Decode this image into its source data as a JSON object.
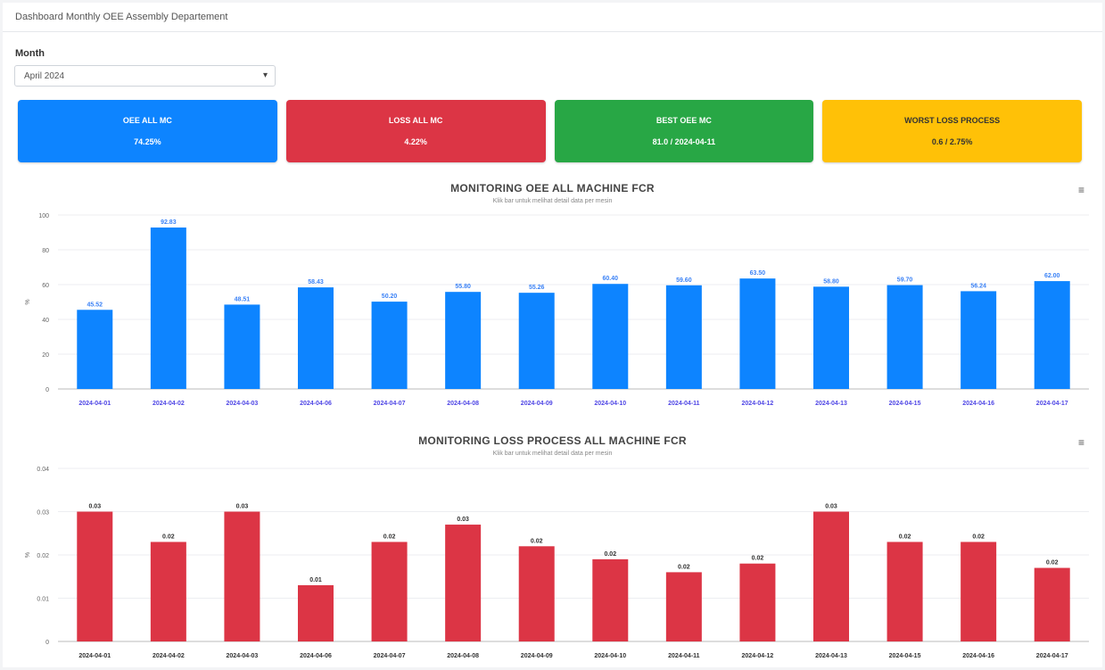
{
  "header": {
    "title": "Dashboard Monthly OEE Assembly Departement"
  },
  "filter": {
    "label": "Month",
    "value": "April 2024"
  },
  "cards": [
    {
      "title": "OEE ALL MC",
      "value": "74.25%",
      "color": "#0d84ff"
    },
    {
      "title": "LOSS ALL MC",
      "value": "4.22%",
      "color": "#dc3545"
    },
    {
      "title": "BEST OEE MC",
      "value": "81.0 / 2024-04-11",
      "color": "#28a745"
    },
    {
      "title": "WORST LOSS PROCESS",
      "value": "0.6 / 2.75%",
      "color": "#ffc107"
    }
  ],
  "chart_data": [
    {
      "type": "bar",
      "title": "MONITORING OEE ALL MACHINE FCR",
      "subtitle": "Klik bar untuk melihat detail data per mesin",
      "ylabel": "%",
      "ylim": [
        0,
        100
      ],
      "yticks": [
        0,
        20,
        40,
        60,
        80,
        100
      ],
      "categories": [
        "2024-04-01",
        "2024-04-02",
        "2024-04-03",
        "2024-04-06",
        "2024-04-07",
        "2024-04-08",
        "2024-04-09",
        "2024-04-10",
        "2024-04-11",
        "2024-04-12",
        "2024-04-13",
        "2024-04-15",
        "2024-04-16",
        "2024-04-17"
      ],
      "values": [
        45.5,
        92.8,
        48.5,
        58.4,
        50.2,
        55.8,
        55.3,
        60.4,
        59.6,
        63.5,
        58.8,
        59.7,
        56.2,
        62.0
      ],
      "labels": [
        "45.52",
        "92.83",
        "48.51",
        "58.43",
        "50.20",
        "55.80",
        "55.26",
        "60.40",
        "59.60",
        "63.50",
        "58.80",
        "59.70",
        "56.24",
        "62.00"
      ],
      "color": "#0d84ff",
      "label_color": "#3b82f6",
      "tick_color": "#4f46e5",
      "grid": true
    },
    {
      "type": "bar",
      "title": "MONITORING LOSS PROCESS ALL MACHINE FCR",
      "subtitle": "Klik bar untuk melihat detail data per mesin",
      "ylabel": "%",
      "ylim": [
        0,
        0.04
      ],
      "yticks": [
        0,
        0.01,
        0.02,
        0.03,
        0.04
      ],
      "ytick_labels": [
        "0",
        "0.01",
        "0.02",
        "0.03",
        "0.04"
      ],
      "categories": [
        "2024-04-01",
        "2024-04-02",
        "2024-04-03",
        "2024-04-06",
        "2024-04-07",
        "2024-04-08",
        "2024-04-09",
        "2024-04-10",
        "2024-04-11",
        "2024-04-12",
        "2024-04-13",
        "2024-04-15",
        "2024-04-16",
        "2024-04-17"
      ],
      "values": [
        0.03,
        0.023,
        0.03,
        0.013,
        0.023,
        0.027,
        0.022,
        0.019,
        0.016,
        0.018,
        0.03,
        0.023,
        0.023,
        0.017
      ],
      "labels": [
        "0.03",
        "0.02",
        "0.03",
        "0.01",
        "0.02",
        "0.03",
        "0.02",
        "0.02",
        "0.02",
        "0.02",
        "0.03",
        "0.02",
        "0.02",
        "0.02"
      ],
      "color": "#dc3545",
      "label_color": "#333333",
      "tick_color": "#333333",
      "grid": true
    }
  ]
}
